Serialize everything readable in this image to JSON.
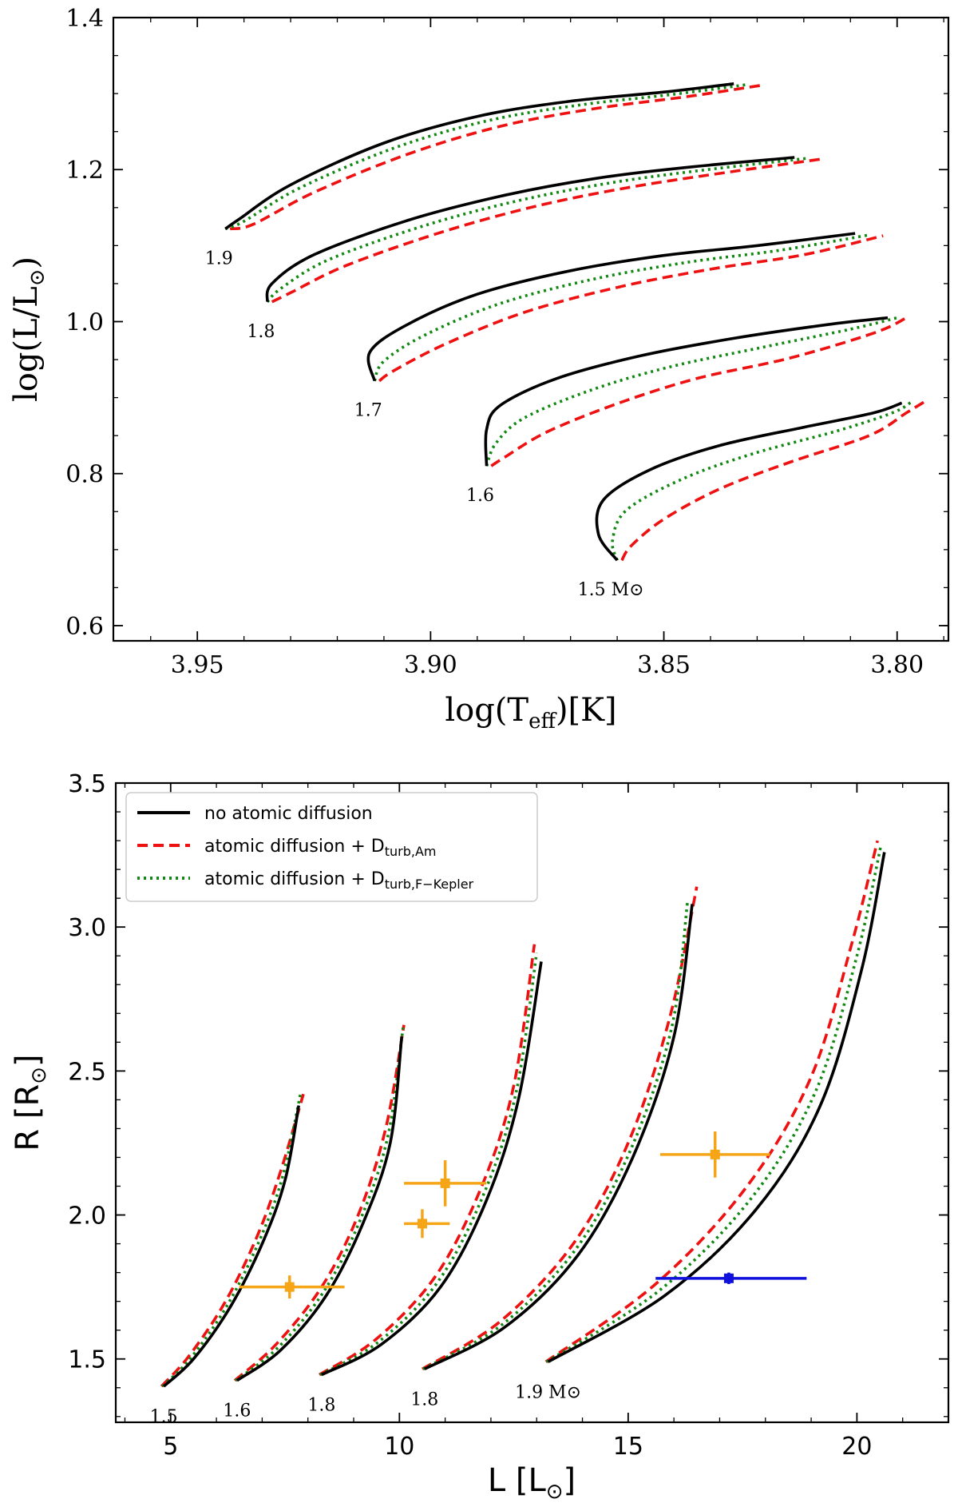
{
  "colors": {
    "no_diffusion": "#000000",
    "am": "#ee1111",
    "kepler": "#118811",
    "orange_obs": "#f5a516",
    "blue_obs": "#1111dd"
  },
  "chart_data": [
    {
      "type": "line",
      "title": "",
      "xlabel": "log(T",
      "xlabel_sub": "eff",
      "xlabel_tail": ")[K]",
      "ylabel": "log(L/L",
      "ylabel_sub": "⊙",
      "ylabel_tail": ")",
      "xlim": [
        3.968,
        3.789
      ],
      "ylim": [
        0.58,
        1.4
      ],
      "xticks": [
        3.95,
        3.9,
        3.85,
        3.8
      ],
      "xtick_labels": [
        "3.95",
        "3.90",
        "3.85",
        "3.80"
      ],
      "yticks": [
        0.6,
        0.8,
        1.0,
        1.2,
        1.4
      ],
      "ytick_labels": [
        "0.6",
        "0.8",
        "1.0",
        "1.2",
        "1.4"
      ],
      "curve_labels": [
        "1.9",
        "1.8",
        "1.7",
        "1.6",
        "1.5 M⊙"
      ],
      "series": [
        {
          "mass": 1.9,
          "model": "no atomic diffusion",
          "x": [
            3.944,
            3.941,
            3.93,
            3.91,
            3.89,
            3.87,
            3.85,
            3.835
          ],
          "y": [
            1.122,
            1.135,
            1.18,
            1.235,
            1.27,
            1.29,
            1.302,
            1.313
          ]
        },
        {
          "mass": 1.9,
          "model": "atomic diffusion + Am",
          "x": [
            3.943,
            3.938,
            3.925,
            3.905,
            3.885,
            3.865,
            3.845,
            3.829
          ],
          "y": [
            1.122,
            1.128,
            1.17,
            1.22,
            1.257,
            1.28,
            1.296,
            1.311
          ]
        },
        {
          "mass": 1.9,
          "model": "atomic diffusion + F-Kepler",
          "x": [
            3.944,
            3.94,
            3.928,
            3.908,
            3.888,
            3.868,
            3.848,
            3.832
          ],
          "y": [
            1.122,
            1.132,
            1.176,
            1.228,
            1.264,
            1.285,
            1.299,
            1.312
          ]
        },
        {
          "mass": 1.8,
          "model": "no atomic diffusion",
          "x": [
            3.935,
            3.934,
            3.925,
            3.905,
            3.885,
            3.865,
            3.845,
            3.822
          ],
          "y": [
            1.026,
            1.05,
            1.088,
            1.133,
            1.165,
            1.188,
            1.203,
            1.216
          ]
        },
        {
          "mass": 1.8,
          "model": "atomic diffusion + Am",
          "x": [
            3.934,
            3.93,
            3.918,
            3.898,
            3.878,
            3.858,
            3.838,
            3.816
          ],
          "y": [
            1.026,
            1.038,
            1.074,
            1.117,
            1.151,
            1.176,
            1.195,
            1.214
          ]
        },
        {
          "mass": 1.8,
          "model": "atomic diffusion + F-Kepler",
          "x": [
            3.935,
            3.932,
            3.922,
            3.902,
            3.882,
            3.862,
            3.842,
            3.819
          ],
          "y": [
            1.026,
            1.044,
            1.081,
            1.125,
            1.158,
            1.182,
            1.199,
            1.215
          ]
        },
        {
          "mass": 1.7,
          "model": "no atomic diffusion",
          "x": [
            3.912,
            3.913,
            3.905,
            3.89,
            3.87,
            3.85,
            3.83,
            3.809
          ],
          "y": [
            0.922,
            0.96,
            0.996,
            1.036,
            1.067,
            1.087,
            1.1,
            1.116
          ]
        },
        {
          "mass": 1.7,
          "model": "atomic diffusion + Am",
          "x": [
            3.911,
            3.908,
            3.897,
            3.88,
            3.86,
            3.84,
            3.82,
            3.803
          ],
          "y": [
            0.922,
            0.935,
            0.97,
            1.012,
            1.045,
            1.069,
            1.088,
            1.113
          ]
        },
        {
          "mass": 1.7,
          "model": "atomic diffusion + F-Kepler",
          "x": [
            3.912,
            3.91,
            3.901,
            3.885,
            3.865,
            3.845,
            3.825,
            3.806
          ],
          "y": [
            0.922,
            0.948,
            0.983,
            1.024,
            1.056,
            1.078,
            1.094,
            1.114
          ]
        },
        {
          "mass": 1.6,
          "model": "no atomic diffusion",
          "x": [
            3.888,
            3.888,
            3.885,
            3.873,
            3.855,
            3.835,
            3.815,
            3.802
          ],
          "y": [
            0.81,
            0.858,
            0.89,
            0.925,
            0.955,
            0.978,
            0.996,
            1.005
          ]
        },
        {
          "mass": 1.6,
          "model": "atomic diffusion + Am",
          "x": [
            3.887,
            3.884,
            3.875,
            3.86,
            3.843,
            3.823,
            3.805,
            3.798
          ],
          "y": [
            0.81,
            0.822,
            0.855,
            0.892,
            0.925,
            0.952,
            0.985,
            1.005
          ]
        },
        {
          "mass": 1.6,
          "model": "atomic diffusion + F-Kepler",
          "x": [
            3.888,
            3.886,
            3.88,
            3.866,
            3.849,
            3.829,
            3.81,
            3.8
          ],
          "y": [
            0.81,
            0.84,
            0.873,
            0.909,
            0.94,
            0.966,
            0.99,
            1.005
          ]
        },
        {
          "mass": 1.5,
          "model": "no atomic diffusion",
          "x": [
            3.86,
            3.864,
            3.863,
            3.853,
            3.838,
            3.82,
            3.805,
            3.799
          ],
          "y": [
            0.686,
            0.72,
            0.765,
            0.805,
            0.837,
            0.861,
            0.88,
            0.893
          ]
        },
        {
          "mass": 1.5,
          "model": "atomic diffusion + Am",
          "x": [
            3.859,
            3.857,
            3.85,
            3.838,
            3.823,
            3.806,
            3.798,
            3.794
          ],
          "y": [
            0.686,
            0.705,
            0.74,
            0.78,
            0.815,
            0.85,
            0.88,
            0.895
          ]
        },
        {
          "mass": 1.5,
          "model": "atomic diffusion + F-Kepler",
          "x": [
            3.86,
            3.861,
            3.858,
            3.846,
            3.831,
            3.813,
            3.801,
            3.797
          ],
          "y": [
            0.686,
            0.712,
            0.752,
            0.793,
            0.826,
            0.856,
            0.88,
            0.894
          ]
        }
      ]
    },
    {
      "type": "line",
      "title": "",
      "xlabel": "L [L",
      "xlabel_sub": "⊙",
      "xlabel_tail": "]",
      "ylabel": "R [R",
      "ylabel_sub": "⊙",
      "ylabel_tail": "]",
      "xlim": [
        3.8,
        22.0
      ],
      "ylim": [
        1.28,
        3.5
      ],
      "xticks": [
        5,
        10,
        15,
        20
      ],
      "xtick_labels": [
        "5",
        "10",
        "15",
        "20"
      ],
      "yticks": [
        1.5,
        2.0,
        2.5,
        3.0,
        3.5
      ],
      "ytick_labels": [
        "1.5",
        "2.0",
        "2.5",
        "3.0",
        "3.5"
      ],
      "curve_labels": [
        "1.5",
        "1.6",
        "1.8",
        "1.8",
        "1.9 M⊙"
      ],
      "legend": {
        "position": "top-left",
        "entries": [
          {
            "label": "no atomic diffusion",
            "sub": "",
            "style": "solid"
          },
          {
            "label": "atomic diffusion + D",
            "sub": "turb,Am",
            "style": "dashed"
          },
          {
            "label": "atomic diffusion + D",
            "sub": "turb,F−Kepler",
            "style": "dotted"
          }
        ]
      },
      "series": [
        {
          "mass": 1.5,
          "model": "no atomic diffusion",
          "x": [
            4.85,
            5.5,
            6.3,
            7.0,
            7.5,
            7.8
          ],
          "y": [
            1.405,
            1.5,
            1.68,
            1.9,
            2.12,
            2.38
          ]
        },
        {
          "mass": 1.5,
          "model": "atomic diffusion + Am",
          "x": [
            4.8,
            5.4,
            6.2,
            6.9,
            7.4,
            7.9
          ],
          "y": [
            1.405,
            1.51,
            1.7,
            1.93,
            2.15,
            2.42
          ]
        },
        {
          "mass": 1.5,
          "model": "atomic diffusion + F-Kepler",
          "x": [
            4.82,
            5.45,
            6.25,
            6.95,
            7.45,
            7.85
          ],
          "y": [
            1.405,
            1.505,
            1.69,
            1.915,
            2.135,
            2.43
          ]
        },
        {
          "mass": 1.6,
          "model": "no atomic diffusion",
          "x": [
            6.45,
            7.4,
            8.4,
            9.2,
            9.8,
            10.05
          ],
          "y": [
            1.425,
            1.53,
            1.72,
            1.97,
            2.25,
            2.62
          ]
        },
        {
          "mass": 1.6,
          "model": "atomic diffusion + Am",
          "x": [
            6.4,
            7.3,
            8.3,
            9.1,
            9.7,
            10.1
          ],
          "y": [
            1.425,
            1.55,
            1.75,
            2.0,
            2.3,
            2.66
          ]
        },
        {
          "mass": 1.6,
          "model": "atomic diffusion + F-Kepler",
          "x": [
            6.42,
            7.35,
            8.35,
            9.15,
            9.75,
            10.08
          ],
          "y": [
            1.425,
            1.54,
            1.735,
            1.985,
            2.275,
            2.65
          ]
        },
        {
          "mass": 1.8,
          "model": "no atomic diffusion",
          "x": [
            8.3,
            9.6,
            10.9,
            11.9,
            12.6,
            13.1
          ],
          "y": [
            1.445,
            1.55,
            1.75,
            2.05,
            2.4,
            2.88
          ]
        },
        {
          "mass": 1.8,
          "model": "atomic diffusion + Am",
          "x": [
            8.25,
            9.5,
            10.8,
            11.8,
            12.5,
            12.95
          ],
          "y": [
            1.445,
            1.57,
            1.79,
            2.1,
            2.45,
            2.94
          ]
        },
        {
          "mass": 1.8,
          "model": "atomic diffusion + F-Kepler",
          "x": [
            8.27,
            9.55,
            10.85,
            11.85,
            12.55,
            13.0
          ],
          "y": [
            1.445,
            1.56,
            1.77,
            2.075,
            2.425,
            2.91
          ]
        },
        {
          "mass": 1.8,
          "model": "no atomic diffusion",
          "x": [
            10.55,
            12.3,
            13.9,
            15.1,
            16.0,
            16.4
          ],
          "y": [
            1.465,
            1.61,
            1.86,
            2.2,
            2.62,
            3.08
          ]
        },
        {
          "mass": 1.8,
          "model": "atomic diffusion + Am",
          "x": [
            10.5,
            12.2,
            13.8,
            15.0,
            15.9,
            16.5
          ],
          "y": [
            1.465,
            1.63,
            1.9,
            2.25,
            2.68,
            3.14
          ]
        },
        {
          "mass": 1.8,
          "model": "atomic diffusion + F-Kepler",
          "x": [
            10.52,
            12.25,
            13.85,
            15.05,
            15.95,
            16.3
          ],
          "y": [
            1.465,
            1.62,
            1.88,
            2.225,
            2.65,
            3.09
          ]
        },
        {
          "mass": 1.9,
          "model": "no atomic diffusion",
          "x": [
            13.25,
            15.8,
            17.8,
            19.2,
            20.1,
            20.6
          ],
          "y": [
            1.49,
            1.72,
            2.02,
            2.38,
            2.85,
            3.26
          ]
        },
        {
          "mass": 1.9,
          "model": "atomic diffusion + Am",
          "x": [
            13.2,
            15.6,
            17.6,
            19.0,
            19.9,
            20.45
          ],
          "y": [
            1.49,
            1.76,
            2.1,
            2.48,
            2.95,
            3.3
          ]
        },
        {
          "mass": 1.9,
          "model": "atomic diffusion + F-Kepler",
          "x": [
            13.22,
            15.7,
            17.7,
            19.1,
            20.0,
            20.52
          ],
          "y": [
            1.49,
            1.74,
            2.06,
            2.43,
            2.9,
            3.28
          ]
        }
      ],
      "observations": [
        {
          "color": "orange",
          "x": 7.6,
          "y": 1.75,
          "xerr": [
            6.5,
            8.8
          ],
          "yerr": [
            1.71,
            1.79
          ]
        },
        {
          "color": "orange",
          "x": 10.5,
          "y": 1.97,
          "xerr": [
            10.1,
            11.1
          ],
          "yerr": [
            1.92,
            2.02
          ]
        },
        {
          "color": "orange",
          "x": 11.0,
          "y": 2.11,
          "xerr": [
            10.1,
            11.9
          ],
          "yerr": [
            2.03,
            2.19
          ]
        },
        {
          "color": "orange",
          "x": 16.9,
          "y": 2.21,
          "xerr": [
            15.7,
            18.1
          ],
          "yerr": [
            2.13,
            2.29
          ]
        },
        {
          "color": "blue",
          "x": 17.2,
          "y": 1.78,
          "xerr": [
            15.6,
            18.9
          ],
          "yerr": [
            1.76,
            1.8
          ]
        }
      ]
    }
  ]
}
